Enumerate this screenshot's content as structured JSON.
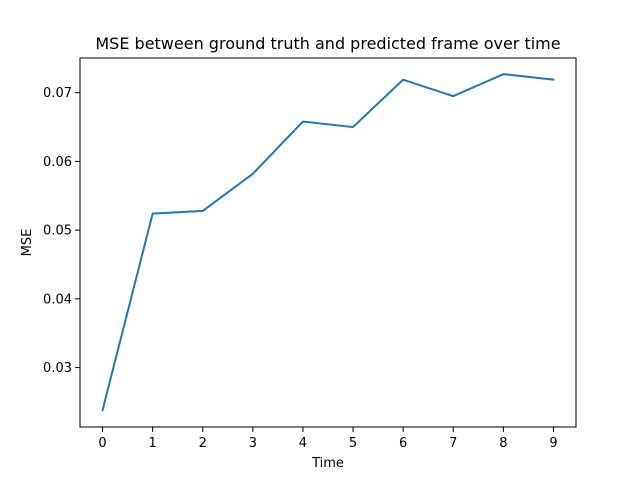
{
  "chart_data": {
    "type": "line",
    "title": "MSE between ground truth and predicted frame over time",
    "xlabel": "Time",
    "ylabel": "MSE",
    "x": [
      0,
      1,
      2,
      3,
      4,
      5,
      6,
      7,
      8,
      9
    ],
    "series": [
      {
        "values": [
          0.0238,
          0.0524,
          0.0528,
          0.0582,
          0.0658,
          0.065,
          0.0719,
          0.0695,
          0.0727,
          0.0719
        ]
      }
    ],
    "xticks": [
      "0",
      "1",
      "2",
      "3",
      "4",
      "5",
      "6",
      "7",
      "8",
      "9"
    ],
    "yticks": [
      "0.03",
      "0.04",
      "0.05",
      "0.06",
      "0.07"
    ],
    "xlim": [
      -0.45,
      9.45
    ],
    "ylim": [
      0.02135,
      0.07505
    ],
    "grid": false,
    "line_color": "#1f77b4"
  }
}
